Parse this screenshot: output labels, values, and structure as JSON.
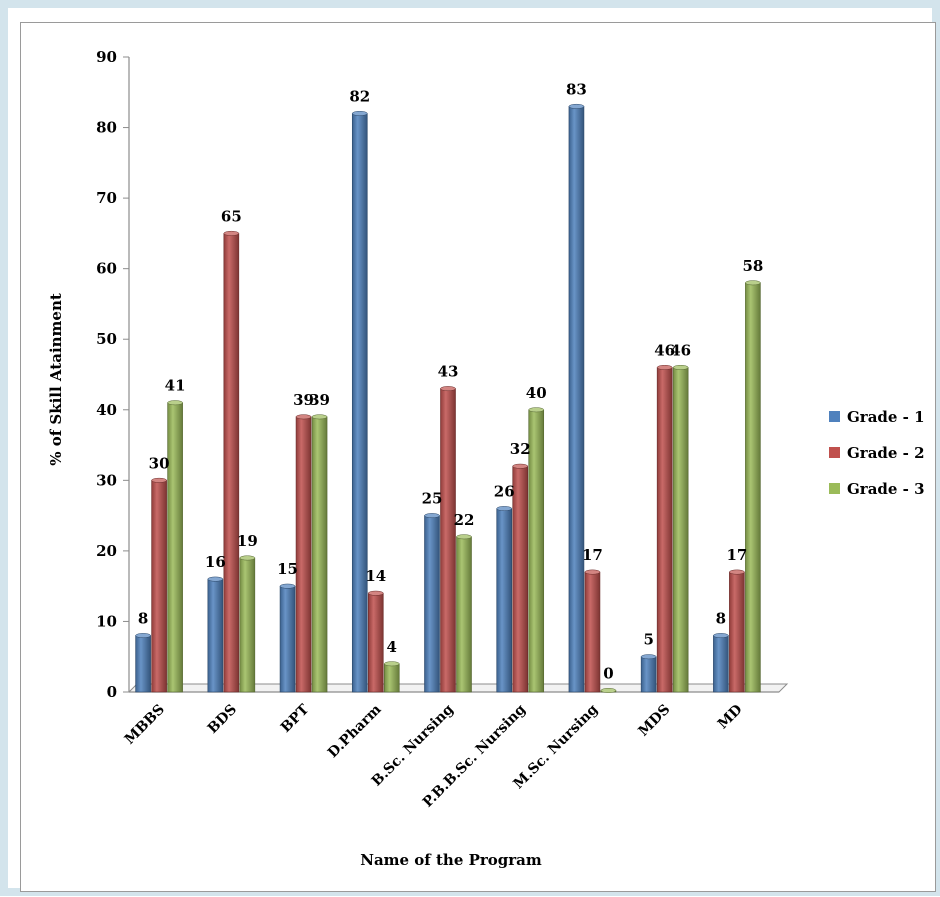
{
  "chart_data": {
    "type": "bar",
    "title": "",
    "xlabel": "Name of the Program",
    "ylabel": "% of Skill Atainment",
    "ylim": [
      0,
      90
    ],
    "yticks": [
      0,
      10,
      20,
      30,
      40,
      50,
      60,
      70,
      80,
      90
    ],
    "categories": [
      "MBBS",
      "BDS",
      "BPT",
      "D.Pharm",
      "B.Sc. Nursing",
      "P.B.B.Sc. Nursing",
      "M.Sc. Nursing",
      "MDS",
      "MD"
    ],
    "series": [
      {
        "name": "Grade - 1",
        "color": "#4f81bd",
        "values": [
          8,
          16,
          15,
          82,
          25,
          26,
          83,
          5,
          8
        ]
      },
      {
        "name": "Grade - 2",
        "color": "#c0504d",
        "values": [
          30,
          65,
          39,
          14,
          43,
          32,
          17,
          46,
          17
        ]
      },
      {
        "name": "Grade - 3",
        "color": "#9bbb59",
        "values": [
          41,
          19,
          39,
          4,
          22,
          40,
          0,
          46,
          58
        ]
      }
    ],
    "legend_position": "right",
    "grid": false,
    "style": "3d-cylinder-bars"
  }
}
